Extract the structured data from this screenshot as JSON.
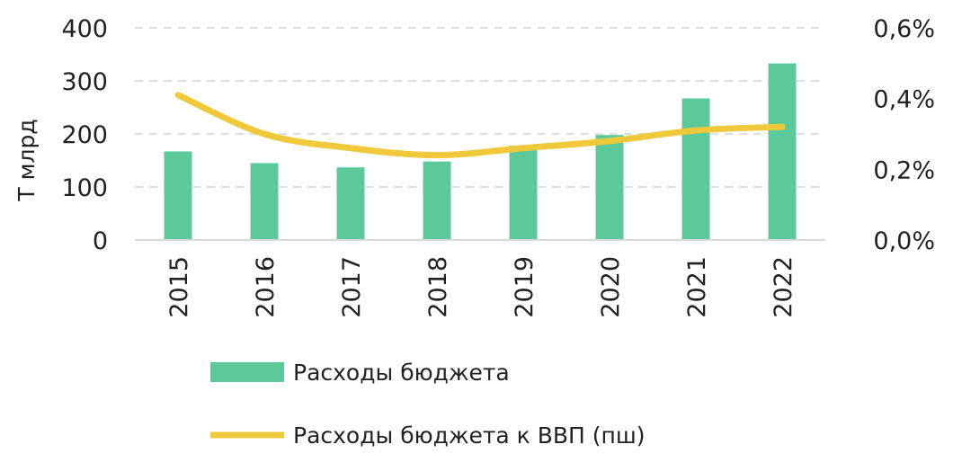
{
  "chart_data": {
    "type": "bar",
    "categories": [
      "2015",
      "2016",
      "2017",
      "2018",
      "2019",
      "2020",
      "2021",
      "2022"
    ],
    "series": [
      {
        "name": "Расходы бюджета",
        "type": "bar",
        "axis": "left",
        "color": "#5cc99a",
        "values": [
          167,
          145,
          137,
          148,
          178,
          198,
          267,
          333
        ]
      },
      {
        "name": "Расходы бюджета к ВВП (пш)",
        "type": "line",
        "axis": "right",
        "color": "#f0c93a",
        "values": [
          0.41,
          0.3,
          0.26,
          0.24,
          0.26,
          0.28,
          0.31,
          0.32
        ]
      }
    ],
    "ylabel": "Т млрд",
    "ylim": [
      0,
      400
    ],
    "yticks": [
      {
        "value": 0,
        "label": "0"
      },
      {
        "value": 100,
        "label": "100"
      },
      {
        "value": 200,
        "label": "200"
      },
      {
        "value": 300,
        "label": "300"
      },
      {
        "value": 400,
        "label": "400"
      }
    ],
    "y2lim": [
      0,
      0.6
    ],
    "y2ticks": [
      {
        "value": 0,
        "label": "0,0%"
      },
      {
        "value": 0.2,
        "label": "0,2%"
      },
      {
        "value": 0.4,
        "label": "0,4%"
      },
      {
        "value": 0.6,
        "label": "0,6%"
      }
    ],
    "grid": true,
    "legend_position": "bottom"
  }
}
